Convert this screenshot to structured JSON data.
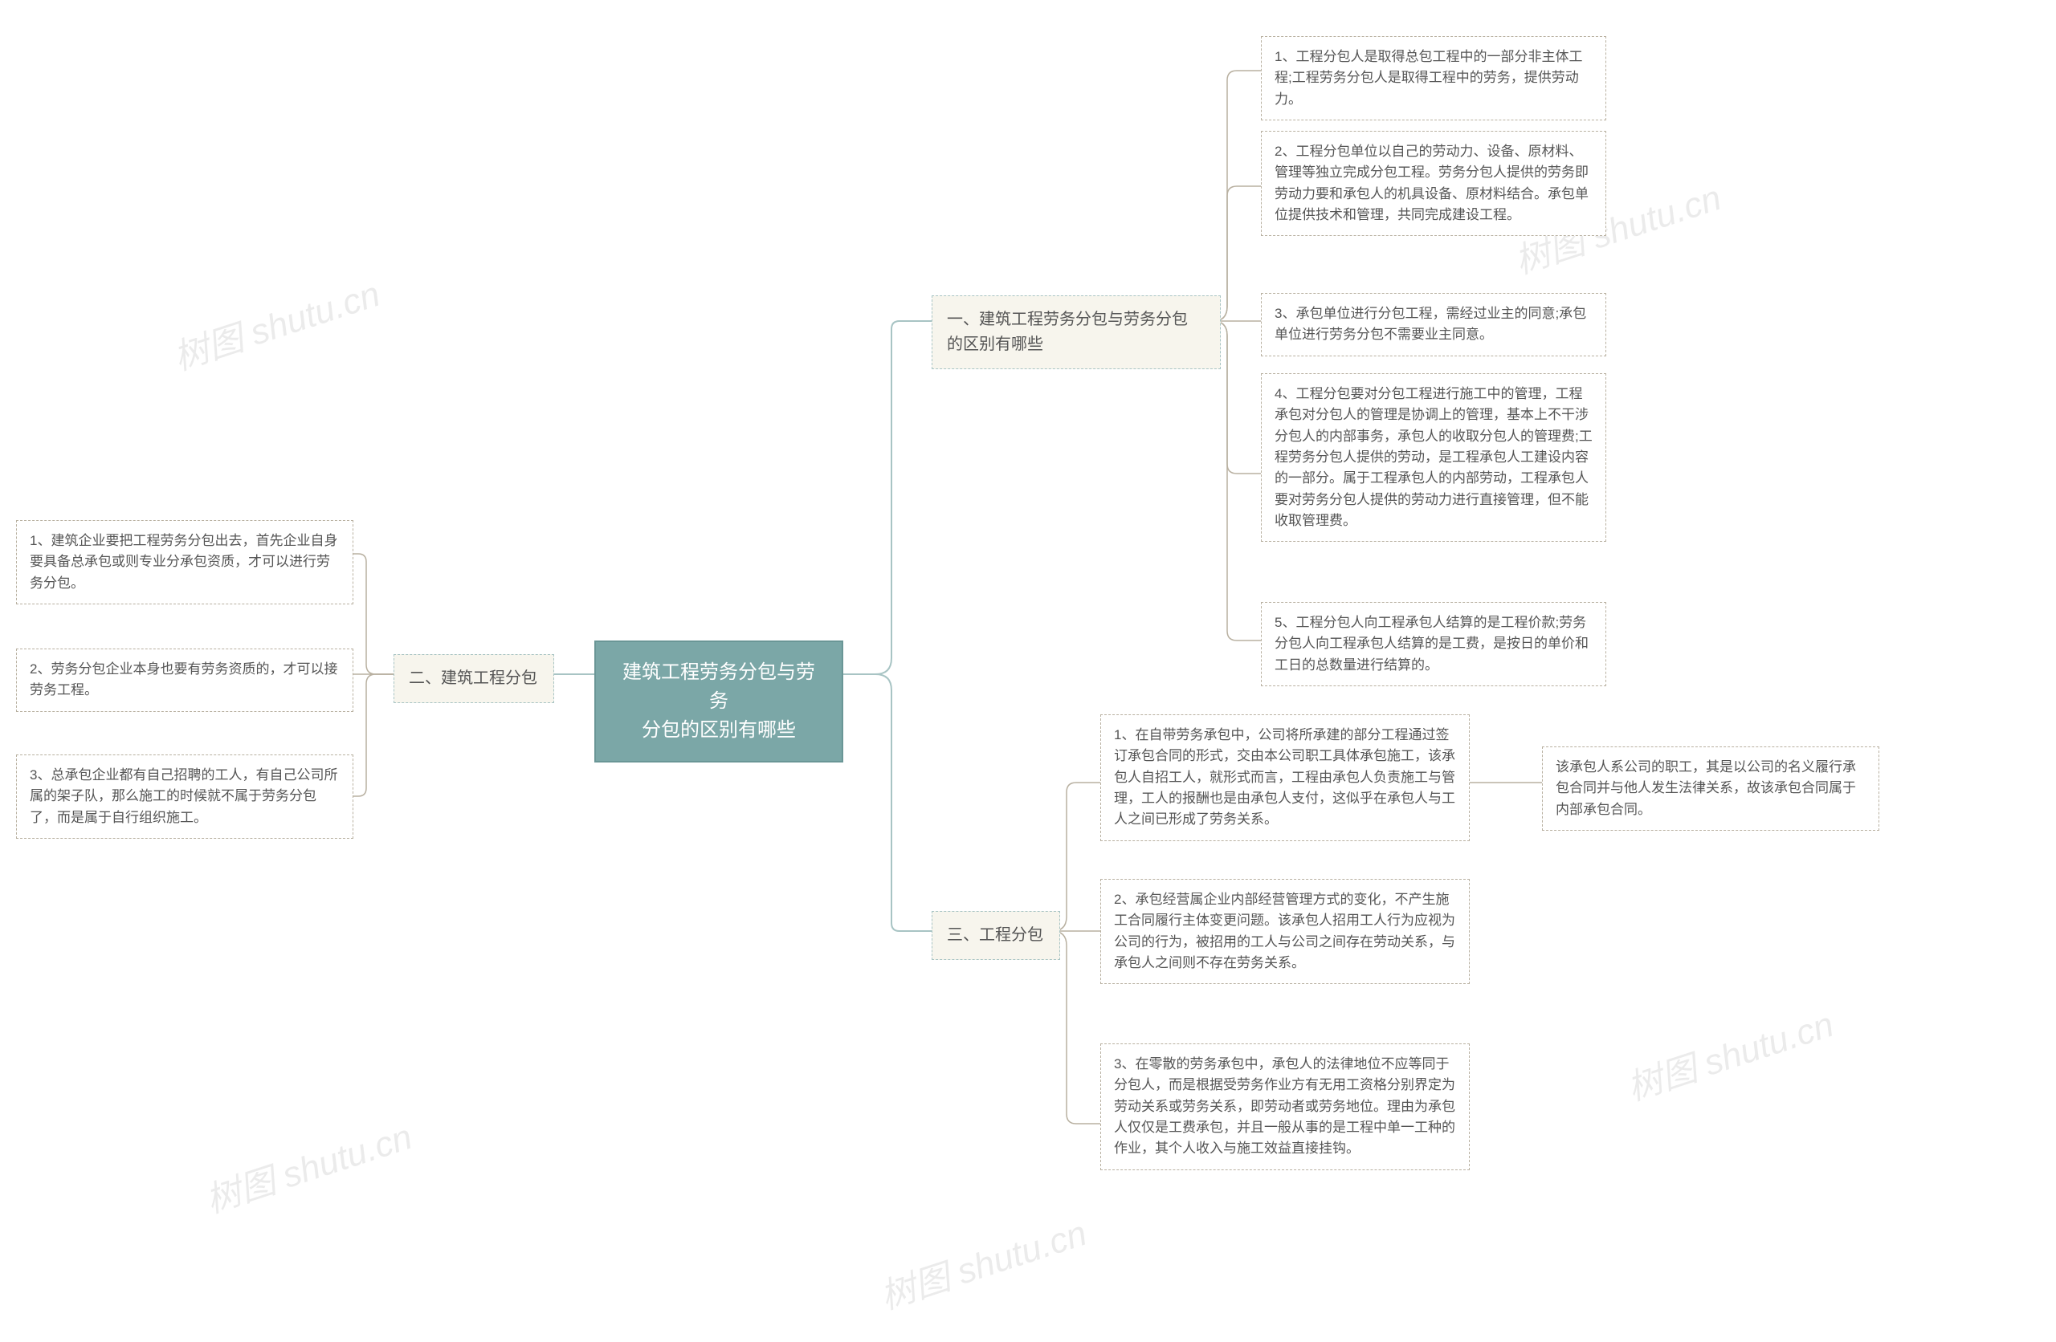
{
  "diagram": {
    "type": "mindmap",
    "background_color": "#ffffff",
    "root_color": "#7ba7a7",
    "root_border": "#6a9696",
    "branch_bg": "#f7f5ed",
    "branch_border": "#a8c4c4",
    "leaf_border": "#b8b0a0",
    "connector_color": "#a8c4c4",
    "leaf_connector_color": "#b8b0a0",
    "text_color": "#555555",
    "root_text_color": "#ffffff",
    "root_fontsize": 24,
    "branch_fontsize": 20,
    "leaf_fontsize": 17,
    "border_style": "dashed",
    "watermark_text": "树图 shutu.cn",
    "watermark_color": "rgba(0,0,0,0.08)",
    "watermark_fontsize": 44,
    "watermark_rotation": -18
  },
  "root": {
    "title_line1": "建筑工程劳务分包与劳务",
    "title_line2": "分包的区别有哪些"
  },
  "branch1": {
    "title_line1": "一、建筑工程劳务分包与劳务分包",
    "title_line2": "的区别有哪些",
    "items": [
      "1、工程分包人是取得总包工程中的一部分非主体工程;工程劳务分包人是取得工程中的劳务，提供劳动力。",
      "2、工程分包单位以自己的劳动力、设备、原材料、管理等独立完成分包工程。劳务分包人提供的劳务即劳动力要和承包人的机具设备、原材料结合。承包单位提供技术和管理，共同完成建设工程。",
      "3、承包单位进行分包工程，需经过业主的同意;承包单位进行劳务分包不需要业主同意。",
      "4、工程分包要对分包工程进行施工中的管理，工程承包对分包人的管理是协调上的管理，基本上不干涉分包人的内部事务，承包人的收取分包人的管理费;工程劳务分包人提供的劳动，是工程承包人工建设内容的一部分。属于工程承包人的内部劳动，工程承包人要对劳务分包人提供的劳动力进行直接管理，但不能收取管理费。",
      "5、工程分包人向工程承包人结算的是工程价款;劳务分包人向工程承包人结算的是工费，是按日的单价和工日的总数量进行结算的。"
    ]
  },
  "branch2": {
    "title": "二、建筑工程分包",
    "items": [
      "1、建筑企业要把工程劳务分包出去，首先企业自身要具备总承包或则专业分承包资质，才可以进行劳务分包。",
      "2、劳务分包企业本身也要有劳务资质的，才可以接劳务工程。",
      "3、总承包企业都有自己招聘的工人，有自己公司所属的架子队，那么施工的时候就不属于劳务分包了，而是属于自行组织施工。"
    ]
  },
  "branch3": {
    "title": "三、工程分包",
    "items": [
      "1、在自带劳务承包中，公司将所承建的部分工程通过签订承包合同的形式，交由本公司职工具体承包施工，该承包人自招工人，就形式而言，工程由承包人负责施工与管理，工人的报酬也是由承包人支付，这似乎在承包人与工人之间已形成了劳务关系。",
      "2、承包经营属企业内部经营管理方式的变化，不产生施工合同履行主体变更问题。该承包人招用工人行为应视为公司的行为，被招用的工人与公司之间存在劳动关系，与承包人之间则不存在劳务关系。",
      "3、在零散的劳务承包中，承包人的法律地位不应等同于分包人，而是根据受劳务作业方有无用工资格分别界定为劳动关系或劳务关系，即劳动者或劳务地位。理由为承包人仅仅是工费承包，并且一般从事的是工程中单一工种的作业，其个人收入与施工效益直接挂钩。"
    ],
    "sub_item": "该承包人系公司的职工，其是以公司的名义履行承包合同并与他人发生法律关系，故该承包合同属于内部承包合同。"
  }
}
